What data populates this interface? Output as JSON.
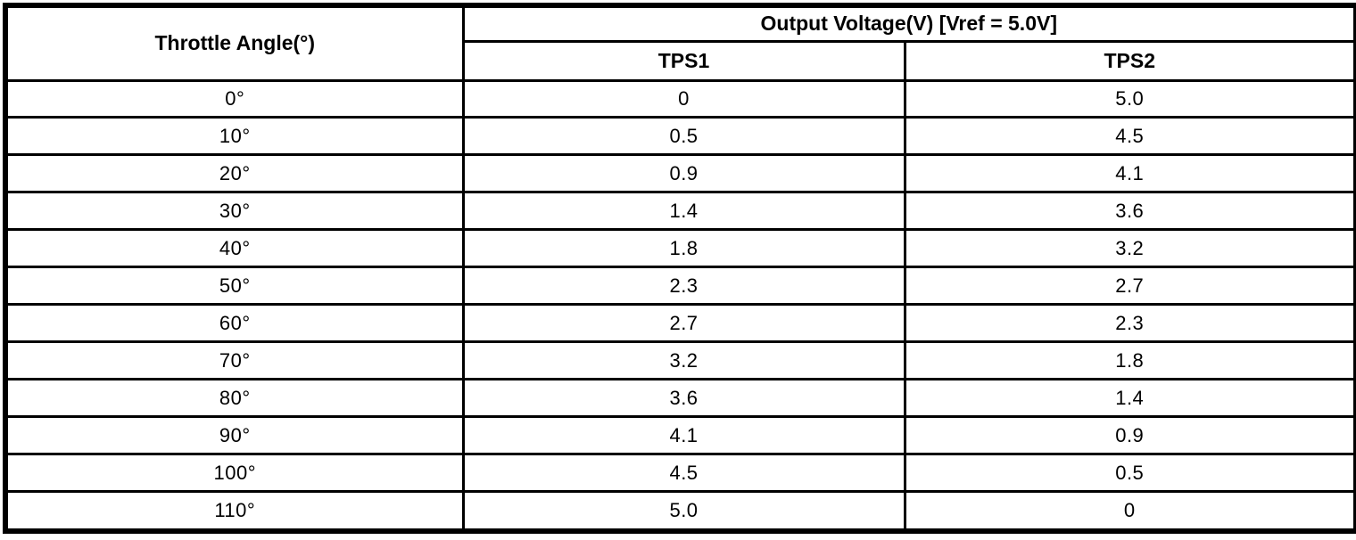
{
  "table": {
    "col1_header": "Throttle Angle(°)",
    "group_header": "Output Voltage(V) [Vref = 5.0V]",
    "sub_headers": [
      "TPS1",
      "TPS2"
    ],
    "rows": [
      {
        "angle": "0°",
        "tps1": "0",
        "tps2": "5.0"
      },
      {
        "angle": "10°",
        "tps1": "0.5",
        "tps2": "4.5"
      },
      {
        "angle": "20°",
        "tps1": "0.9",
        "tps2": "4.1"
      },
      {
        "angle": "30°",
        "tps1": "1.4",
        "tps2": "3.6"
      },
      {
        "angle": "40°",
        "tps1": "1.8",
        "tps2": "3.2"
      },
      {
        "angle": "50°",
        "tps1": "2.3",
        "tps2": "2.7"
      },
      {
        "angle": "60°",
        "tps1": "2.7",
        "tps2": "2.3"
      },
      {
        "angle": "70°",
        "tps1": "3.2",
        "tps2": "1.8"
      },
      {
        "angle": "80°",
        "tps1": "3.6",
        "tps2": "1.4"
      },
      {
        "angle": "90°",
        "tps1": "4.1",
        "tps2": "0.9"
      },
      {
        "angle": "100°",
        "tps1": "4.5",
        "tps2": "0.5"
      },
      {
        "angle": "110°",
        "tps1": "5.0",
        "tps2": "0"
      }
    ]
  },
  "colors": {
    "border": "#000000",
    "background": "#ffffff",
    "text": "#000000"
  },
  "chart_data": {
    "type": "table",
    "title": "Output Voltage(V) [Vref = 5.0V]",
    "xlabel": "Throttle Angle(°)",
    "categories": [
      0,
      10,
      20,
      30,
      40,
      50,
      60,
      70,
      80,
      90,
      100,
      110
    ],
    "series": [
      {
        "name": "TPS1",
        "values": [
          0,
          0.5,
          0.9,
          1.4,
          1.8,
          2.3,
          2.7,
          3.2,
          3.6,
          4.1,
          4.5,
          5.0
        ]
      },
      {
        "name": "TPS2",
        "values": [
          5.0,
          4.5,
          4.1,
          3.6,
          3.2,
          2.7,
          2.3,
          1.8,
          1.4,
          0.9,
          0.5,
          0
        ]
      }
    ]
  }
}
